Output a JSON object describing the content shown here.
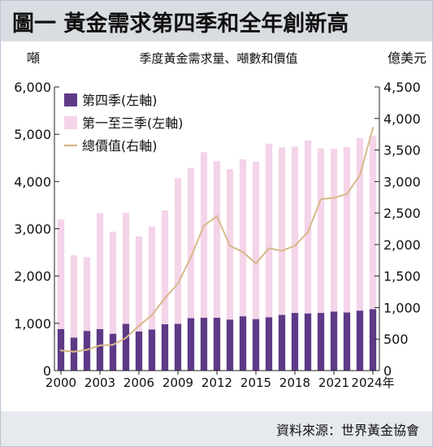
{
  "title": "圖一 黃金需求第四季和全年創新高",
  "source": "資料來源：世界黃金協會",
  "chart_data": {
    "type": "bar",
    "title": "季度黃金需求量、噸數和價值",
    "y_left_unit": "噸",
    "y_right_unit": "億美元",
    "x_last_suffix": "年",
    "categories": [
      "2000",
      "2001",
      "2002",
      "2003",
      "2004",
      "2005",
      "2006",
      "2007",
      "2008",
      "2009",
      "2010",
      "2011",
      "2012",
      "2013",
      "2014",
      "2015",
      "2016",
      "2017",
      "2018",
      "2019",
      "2020",
      "2021",
      "2022",
      "2023",
      "2024"
    ],
    "x_tick_labels": [
      "2000",
      "2003",
      "2006",
      "2009",
      "2012",
      "2015",
      "2018",
      "2021",
      "2024"
    ],
    "ylim_left": [
      0,
      6000
    ],
    "yticks_left": [
      "0",
      "1,000",
      "2,000",
      "3,000",
      "4,000",
      "5,000",
      "6,000"
    ],
    "ylim_right": [
      0,
      4500
    ],
    "yticks_right": [
      "0",
      "500",
      "1,000",
      "1,500",
      "2,000",
      "2,500",
      "3,000",
      "3,500",
      "4,000",
      "4,500"
    ],
    "legend_position": "top-left",
    "grid": false,
    "colors": {
      "q4": "#5e3a86",
      "q1_q3": "#f4d4e8",
      "value_line": "#d8b98a"
    },
    "series": [
      {
        "name": "第四季(左軸)",
        "type": "stacked-bar",
        "axis": "left",
        "values": [
          880,
          700,
          840,
          880,
          780,
          990,
          830,
          870,
          980,
          990,
          1110,
          1120,
          1120,
          1080,
          1150,
          1090,
          1130,
          1180,
          1220,
          1210,
          1220,
          1250,
          1230,
          1270,
          1300
        ]
      },
      {
        "name": "第一至三季(左軸)",
        "type": "stacked-bar",
        "axis": "left",
        "values": [
          2320,
          1740,
          1560,
          2450,
          2160,
          2350,
          2010,
          2180,
          2410,
          3080,
          3180,
          3500,
          3310,
          3180,
          3320,
          3330,
          3670,
          3540,
          3520,
          3660,
          3480,
          3440,
          3500,
          3650,
          3670
        ]
      },
      {
        "name": "總價值(右軸)",
        "type": "line",
        "axis": "right",
        "values": [
          320,
          300,
          330,
          400,
          410,
          520,
          710,
          880,
          1150,
          1380,
          1800,
          2300,
          2450,
          1980,
          1880,
          1700,
          1940,
          1900,
          1980,
          2200,
          2720,
          2740,
          2800,
          3100,
          3850
        ]
      }
    ]
  }
}
